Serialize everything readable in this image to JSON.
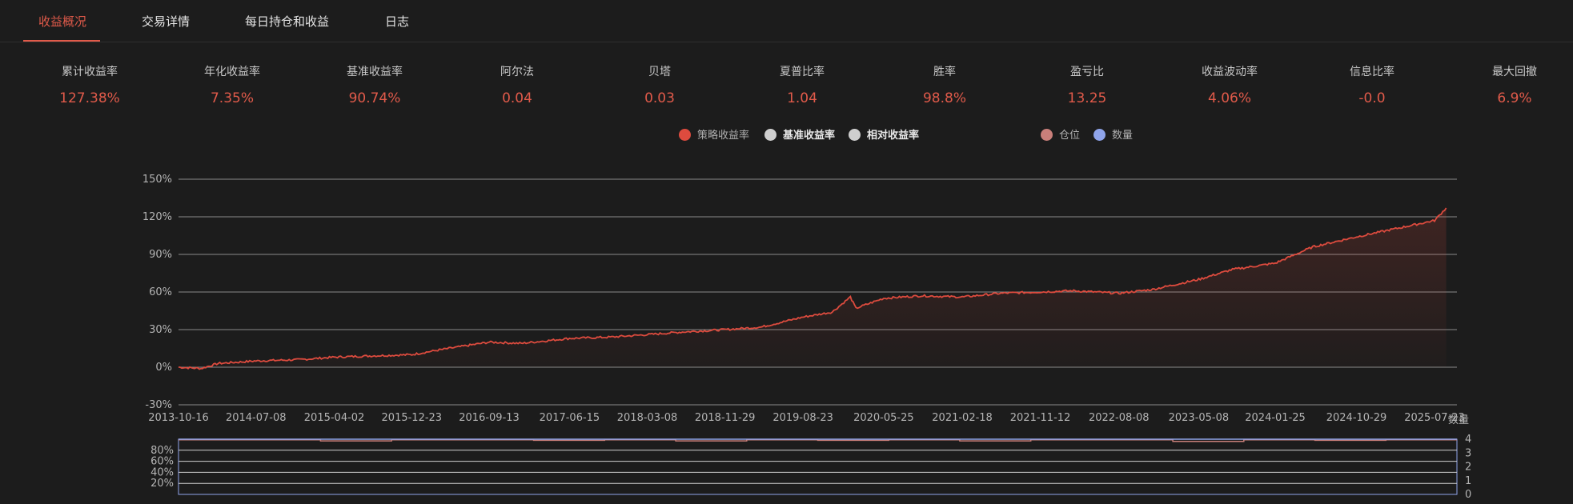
{
  "tabs": [
    {
      "label": "收益概况",
      "active": true
    },
    {
      "label": "交易详情",
      "active": false
    },
    {
      "label": "每日持仓和收益",
      "active": false
    },
    {
      "label": "日志",
      "active": false
    }
  ],
  "metrics": [
    {
      "label": "累计收益率",
      "value": "127.38%"
    },
    {
      "label": "年化收益率",
      "value": "7.35%"
    },
    {
      "label": "基准收益率",
      "value": "90.74%"
    },
    {
      "label": "阿尔法",
      "value": "0.04"
    },
    {
      "label": "贝塔",
      "value": "0.03"
    },
    {
      "label": "夏普比率",
      "value": "1.04"
    },
    {
      "label": "胜率",
      "value": "98.8%"
    },
    {
      "label": "盈亏比",
      "value": "13.25"
    },
    {
      "label": "收益波动率",
      "value": "4.06%"
    },
    {
      "label": "信息比率",
      "value": "-0.0"
    },
    {
      "label": "最大回撤",
      "value": "6.9%"
    }
  ],
  "legend": {
    "items": [
      {
        "label": "策略收益率",
        "color": "#dd4b3e",
        "active": true
      },
      {
        "label": "基准收益率",
        "color": "#cfcfcf",
        "active": false
      },
      {
        "label": "相对收益率",
        "color": "#cfcfcf",
        "active": false
      },
      {
        "label": "仓位",
        "color": "#c97f7a",
        "active": true
      },
      {
        "label": "数量",
        "color": "#8fa4ea",
        "active": true
      }
    ]
  },
  "colors": {
    "accent": "#e05a4a",
    "strategy_line": "#dd4b3e",
    "position_line": "#8fa4ea",
    "grid": "#8a8a8a"
  },
  "chart_data": [
    {
      "type": "line",
      "title": "",
      "xlabel": "",
      "ylabel": "",
      "x_ticks": [
        "2013-10-16",
        "2014-07-08",
        "2015-04-02",
        "2015-12-23",
        "2016-09-13",
        "2017-06-15",
        "2018-03-08",
        "2018-11-29",
        "2019-08-23",
        "2020-05-25",
        "2021-02-18",
        "2021-11-12",
        "2022-08-08",
        "2023-05-08",
        "2024-01-25",
        "2024-10-29",
        "2025-07-23"
      ],
      "y_ticks": [
        "-30%",
        "0%",
        "30%",
        "60%",
        "90%",
        "120%",
        "150%"
      ],
      "ylim": [
        -30,
        150
      ],
      "grid": true,
      "series": [
        {
          "name": "策略收益率",
          "x": [
            "2013-10-16",
            "2014-01-01",
            "2014-03-01",
            "2014-07-08",
            "2014-12-01",
            "2015-04-02",
            "2015-08-01",
            "2015-12-23",
            "2016-04-01",
            "2016-09-13",
            "2017-01-01",
            "2017-06-15",
            "2017-11-01",
            "2018-03-08",
            "2018-07-01",
            "2018-11-29",
            "2019-04-01",
            "2019-08-23",
            "2019-12-01",
            "2020-02-01",
            "2020-02-20",
            "2020-05-25",
            "2020-10-01",
            "2021-02-18",
            "2021-07-01",
            "2021-11-12",
            "2022-03-01",
            "2022-08-08",
            "2022-12-01",
            "2023-05-08",
            "2023-09-01",
            "2024-01-25",
            "2024-06-01",
            "2024-10-29",
            "2025-03-01",
            "2025-07-23",
            "2025-09-01"
          ],
          "y": [
            0,
            -1,
            3,
            5,
            6,
            8,
            9,
            10,
            14,
            20,
            19,
            23,
            24,
            26,
            28,
            30,
            32,
            40,
            44,
            56,
            47,
            55,
            57,
            56,
            59,
            60,
            61,
            59,
            62,
            70,
            78,
            83,
            96,
            104,
            110,
            117,
            127
          ]
        }
      ]
    },
    {
      "type": "line",
      "title": "",
      "xlabel": "",
      "ylabel": "数量",
      "y_ticks_left": [
        "20%",
        "40%",
        "60%",
        "80%"
      ],
      "y_ticks_right": [
        "0",
        "1",
        "2",
        "3",
        "4"
      ],
      "ylim": [
        0,
        100
      ],
      "ylim_right": [
        0,
        4
      ],
      "grid": true,
      "series": [
        {
          "name": "仓位",
          "values": [
            99,
            99,
            97,
            99,
            99,
            98,
            99,
            97,
            99,
            98,
            99,
            97,
            99,
            99,
            96,
            99,
            98,
            99
          ]
        },
        {
          "name": "数量",
          "values": [
            4,
            4,
            4,
            4,
            4,
            4,
            4,
            4,
            4,
            4,
            4,
            4,
            4,
            4,
            4,
            4,
            4,
            4
          ]
        }
      ]
    }
  ]
}
